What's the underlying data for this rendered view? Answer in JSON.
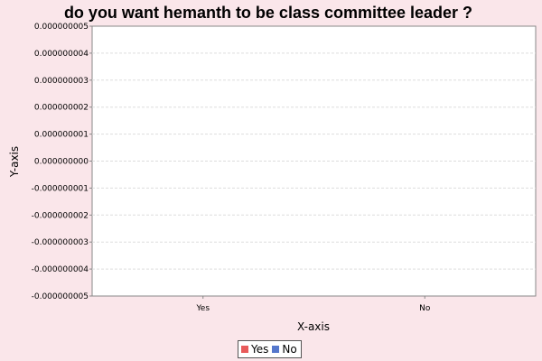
{
  "chart_data": {
    "type": "bar",
    "title": "do you want hemanth to be class committee leader ?",
    "xlabel": "X-axis",
    "ylabel": "Y-axis",
    "categories": [
      "Yes",
      "No"
    ],
    "series": [
      {
        "name": "Yes",
        "values": [
          0,
          0
        ],
        "color": "#e85a5a"
      },
      {
        "name": "No",
        "values": [
          0,
          0
        ],
        "color": "#5577cc"
      }
    ],
    "ylim": [
      -5e-09,
      5e-09
    ],
    "yticks": [
      "0.000000005",
      "0.000000004",
      "0.000000003",
      "0.000000002",
      "0.000000001",
      "0.000000000",
      "-0.000000001",
      "-0.000000002",
      "-0.000000003",
      "-0.000000004",
      "-0.000000005"
    ],
    "grid": true,
    "legend_position": "bottom"
  }
}
